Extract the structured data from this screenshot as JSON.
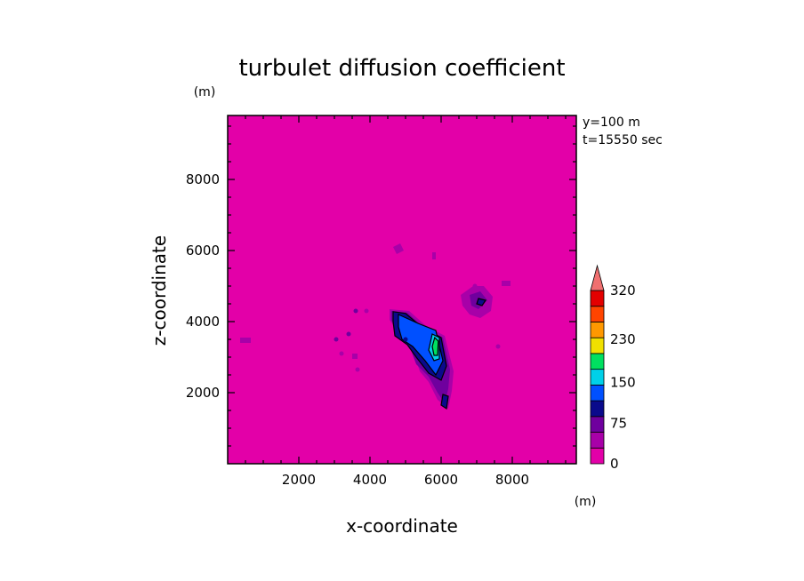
{
  "chart_data": {
    "type": "heatmap",
    "title": "turbulet diffusion coefficient",
    "xlabel": "x-coordinate",
    "ylabel": "z-coordinate",
    "x_unit": "(m)",
    "y_unit": "(m)",
    "annotations": [
      "y=100  m",
      "t=15550 sec"
    ],
    "xlim": [
      0,
      9800
    ],
    "ylim": [
      0,
      9800
    ],
    "xticks": [
      2000,
      4000,
      6000,
      8000
    ],
    "yticks": [
      2000,
      4000,
      6000,
      8000
    ],
    "xtick_labels": [
      "2000",
      "4000",
      "6000",
      "8000"
    ],
    "ytick_labels": [
      "2000",
      "4000",
      "6000",
      "8000"
    ],
    "background_value": 0,
    "colorbar": {
      "levels": [
        0,
        37.5,
        75,
        112.5,
        150,
        190,
        230,
        275,
        320
      ],
      "labels": [
        "0",
        "75",
        "150",
        "230",
        "320"
      ],
      "label_values": [
        0,
        75,
        150,
        230,
        320
      ],
      "extend": "max",
      "colors": [
        "#e300a8",
        "#a800a8",
        "#6f009e",
        "#0a0a8c",
        "#0050ff",
        "#00d0e8",
        "#00e060",
        "#f0e000",
        "#ff9800",
        "#ff4400",
        "#e30000"
      ],
      "extend_color": "#f07070"
    },
    "regions": [
      {
        "level": 1,
        "points": [
          [
            4550,
            4350
          ],
          [
            5100,
            4300
          ],
          [
            5550,
            3900
          ],
          [
            6100,
            3600
          ],
          [
            6350,
            2600
          ],
          [
            6300,
            2050
          ],
          [
            6200,
            1550
          ],
          [
            5900,
            1800
          ],
          [
            5650,
            2300
          ],
          [
            5400,
            2600
          ],
          [
            5200,
            3200
          ],
          [
            4800,
            3700
          ],
          [
            4550,
            4050
          ]
        ]
      },
      {
        "level": 1,
        "points": [
          [
            6550,
            4750
          ],
          [
            6900,
            5000
          ],
          [
            7200,
            5000
          ],
          [
            7450,
            4700
          ],
          [
            7400,
            4300
          ],
          [
            7100,
            4100
          ],
          [
            6800,
            4200
          ],
          [
            6600,
            4450
          ]
        ]
      },
      {
        "level": 1,
        "points": [
          [
            4650,
            6100
          ],
          [
            4850,
            6200
          ],
          [
            4950,
            6000
          ],
          [
            4750,
            5900
          ]
        ]
      },
      {
        "level": 1,
        "points": [
          [
            5750,
            5950
          ],
          [
            5850,
            5950
          ],
          [
            5850,
            5750
          ],
          [
            5750,
            5750
          ]
        ]
      },
      {
        "level": 1,
        "points": [
          [
            7700,
            5150
          ],
          [
            7950,
            5150
          ],
          [
            7950,
            5000
          ],
          [
            7700,
            5000
          ]
        ]
      },
      {
        "level": 1,
        "points": [
          [
            350,
            3550
          ],
          [
            650,
            3550
          ],
          [
            650,
            3400
          ],
          [
            350,
            3400
          ]
        ]
      },
      {
        "level": 1,
        "points": [
          [
            3500,
            3100
          ],
          [
            3650,
            3100
          ],
          [
            3650,
            2950
          ],
          [
            3500,
            2950
          ]
        ]
      },
      {
        "level": 2,
        "points": [
          [
            4600,
            4300
          ],
          [
            5050,
            4250
          ],
          [
            5500,
            3850
          ],
          [
            6050,
            3550
          ],
          [
            6250,
            2650
          ],
          [
            6200,
            2100
          ],
          [
            6100,
            1700
          ],
          [
            5900,
            2000
          ],
          [
            5650,
            2450
          ],
          [
            5300,
            2800
          ],
          [
            5150,
            3200
          ],
          [
            4800,
            3650
          ],
          [
            4600,
            4050
          ]
        ]
      },
      {
        "level": 2,
        "points": [
          [
            6800,
            4750
          ],
          [
            7100,
            4850
          ],
          [
            7300,
            4600
          ],
          [
            7050,
            4350
          ],
          [
            6850,
            4450
          ]
        ]
      },
      {
        "level": 3,
        "points": [
          [
            4650,
            4280
          ],
          [
            5000,
            4230
          ],
          [
            5450,
            3850
          ],
          [
            6000,
            3550
          ],
          [
            6150,
            2750
          ],
          [
            6000,
            2350
          ],
          [
            5650,
            2550
          ],
          [
            5300,
            3000
          ],
          [
            5050,
            3350
          ],
          [
            4700,
            3600
          ],
          [
            4650,
            4000
          ]
        ]
      },
      {
        "level": 3,
        "points": [
          [
            6050,
            1950
          ],
          [
            6200,
            1900
          ],
          [
            6150,
            1550
          ],
          [
            6000,
            1650
          ]
        ]
      },
      {
        "level": 3,
        "points": [
          [
            7050,
            4650
          ],
          [
            7250,
            4600
          ],
          [
            7150,
            4450
          ],
          [
            7000,
            4500
          ]
        ]
      },
      {
        "level": 4,
        "points": [
          [
            4800,
            4200
          ],
          [
            5350,
            3950
          ],
          [
            5850,
            3750
          ],
          [
            6050,
            2900
          ],
          [
            5850,
            2500
          ],
          [
            5550,
            2900
          ],
          [
            5200,
            3300
          ],
          [
            4900,
            3500
          ],
          [
            4800,
            3850
          ]
        ]
      },
      {
        "level": 5,
        "points": [
          [
            5750,
            3650
          ],
          [
            5950,
            3550
          ],
          [
            5950,
            2950
          ],
          [
            5800,
            2900
          ],
          [
            5650,
            3200
          ]
        ]
      },
      {
        "level": 6,
        "points": [
          [
            5820,
            3550
          ],
          [
            5920,
            3450
          ],
          [
            5900,
            3050
          ],
          [
            5800,
            3050
          ],
          [
            5750,
            3300
          ]
        ]
      }
    ],
    "dots": [
      {
        "x": 3050,
        "y": 3500,
        "level": 2
      },
      {
        "x": 3400,
        "y": 3650,
        "level": 2
      },
      {
        "x": 3600,
        "y": 4300,
        "level": 2
      },
      {
        "x": 3900,
        "y": 4300,
        "level": 1
      },
      {
        "x": 3200,
        "y": 3100,
        "level": 1
      },
      {
        "x": 3650,
        "y": 2650,
        "level": 1
      },
      {
        "x": 7600,
        "y": 3300,
        "level": 1
      },
      {
        "x": 6950,
        "y": 5000,
        "level": 1
      },
      {
        "x": 5000,
        "y": 3500,
        "level": 3
      }
    ]
  }
}
